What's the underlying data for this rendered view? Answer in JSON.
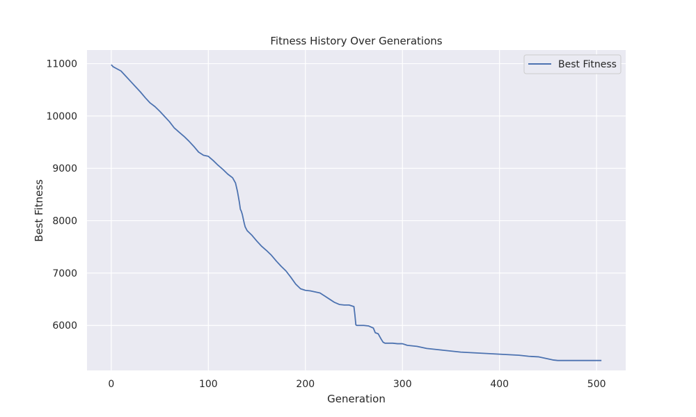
{
  "chart_data": {
    "type": "line",
    "title": "Fitness History Over Generations",
    "xlabel": "Generation",
    "ylabel": "Best Fitness",
    "xlim": [
      -25,
      530
    ],
    "ylim": [
      5140,
      11260
    ],
    "x_ticks": [
      0,
      100,
      200,
      300,
      400,
      500
    ],
    "y_ticks": [
      6000,
      7000,
      8000,
      9000,
      10000,
      11000
    ],
    "grid": true,
    "legend_position": "top-right",
    "colors": {
      "plot_background": "#eaeaf2",
      "grid": "#ffffff",
      "line": "#4c72b0"
    },
    "series": [
      {
        "name": "Best Fitness",
        "x": [
          0,
          2,
          5,
          10,
          15,
          20,
          25,
          30,
          35,
          40,
          45,
          50,
          55,
          60,
          65,
          70,
          75,
          80,
          85,
          90,
          95,
          100,
          105,
          110,
          115,
          120,
          125,
          128,
          130,
          132,
          133,
          134,
          135,
          137,
          138,
          140,
          145,
          150,
          155,
          160,
          165,
          170,
          175,
          180,
          185,
          190,
          195,
          200,
          205,
          210,
          215,
          220,
          225,
          230,
          235,
          240,
          245,
          250,
          251,
          252,
          253,
          255,
          260,
          265,
          270,
          272,
          275,
          278,
          280,
          282,
          285,
          290,
          295,
          300,
          305,
          310,
          315,
          320,
          325,
          330,
          335,
          340,
          345,
          350,
          355,
          360,
          370,
          380,
          390,
          400,
          410,
          420,
          430,
          440,
          445,
          450,
          455,
          460,
          470,
          480,
          490,
          500,
          505
        ],
        "y": [
          10980,
          10940,
          10910,
          10860,
          10760,
          10660,
          10560,
          10460,
          10350,
          10250,
          10180,
          10090,
          9990,
          9890,
          9770,
          9690,
          9610,
          9520,
          9420,
          9310,
          9250,
          9230,
          9150,
          9060,
          8980,
          8890,
          8820,
          8720,
          8560,
          8350,
          8220,
          8180,
          8120,
          7950,
          7880,
          7810,
          7720,
          7610,
          7510,
          7430,
          7340,
          7230,
          7130,
          7040,
          6920,
          6790,
          6700,
          6670,
          6660,
          6640,
          6620,
          6560,
          6500,
          6440,
          6400,
          6390,
          6390,
          6360,
          6200,
          6010,
          6000,
          6000,
          6000,
          5990,
          5950,
          5860,
          5840,
          5740,
          5680,
          5660,
          5660,
          5660,
          5650,
          5650,
          5620,
          5610,
          5600,
          5580,
          5560,
          5550,
          5540,
          5530,
          5520,
          5510,
          5500,
          5490,
          5480,
          5470,
          5460,
          5450,
          5440,
          5430,
          5410,
          5400,
          5380,
          5360,
          5340,
          5330,
          5330,
          5330,
          5330,
          5330,
          5330
        ]
      }
    ]
  }
}
